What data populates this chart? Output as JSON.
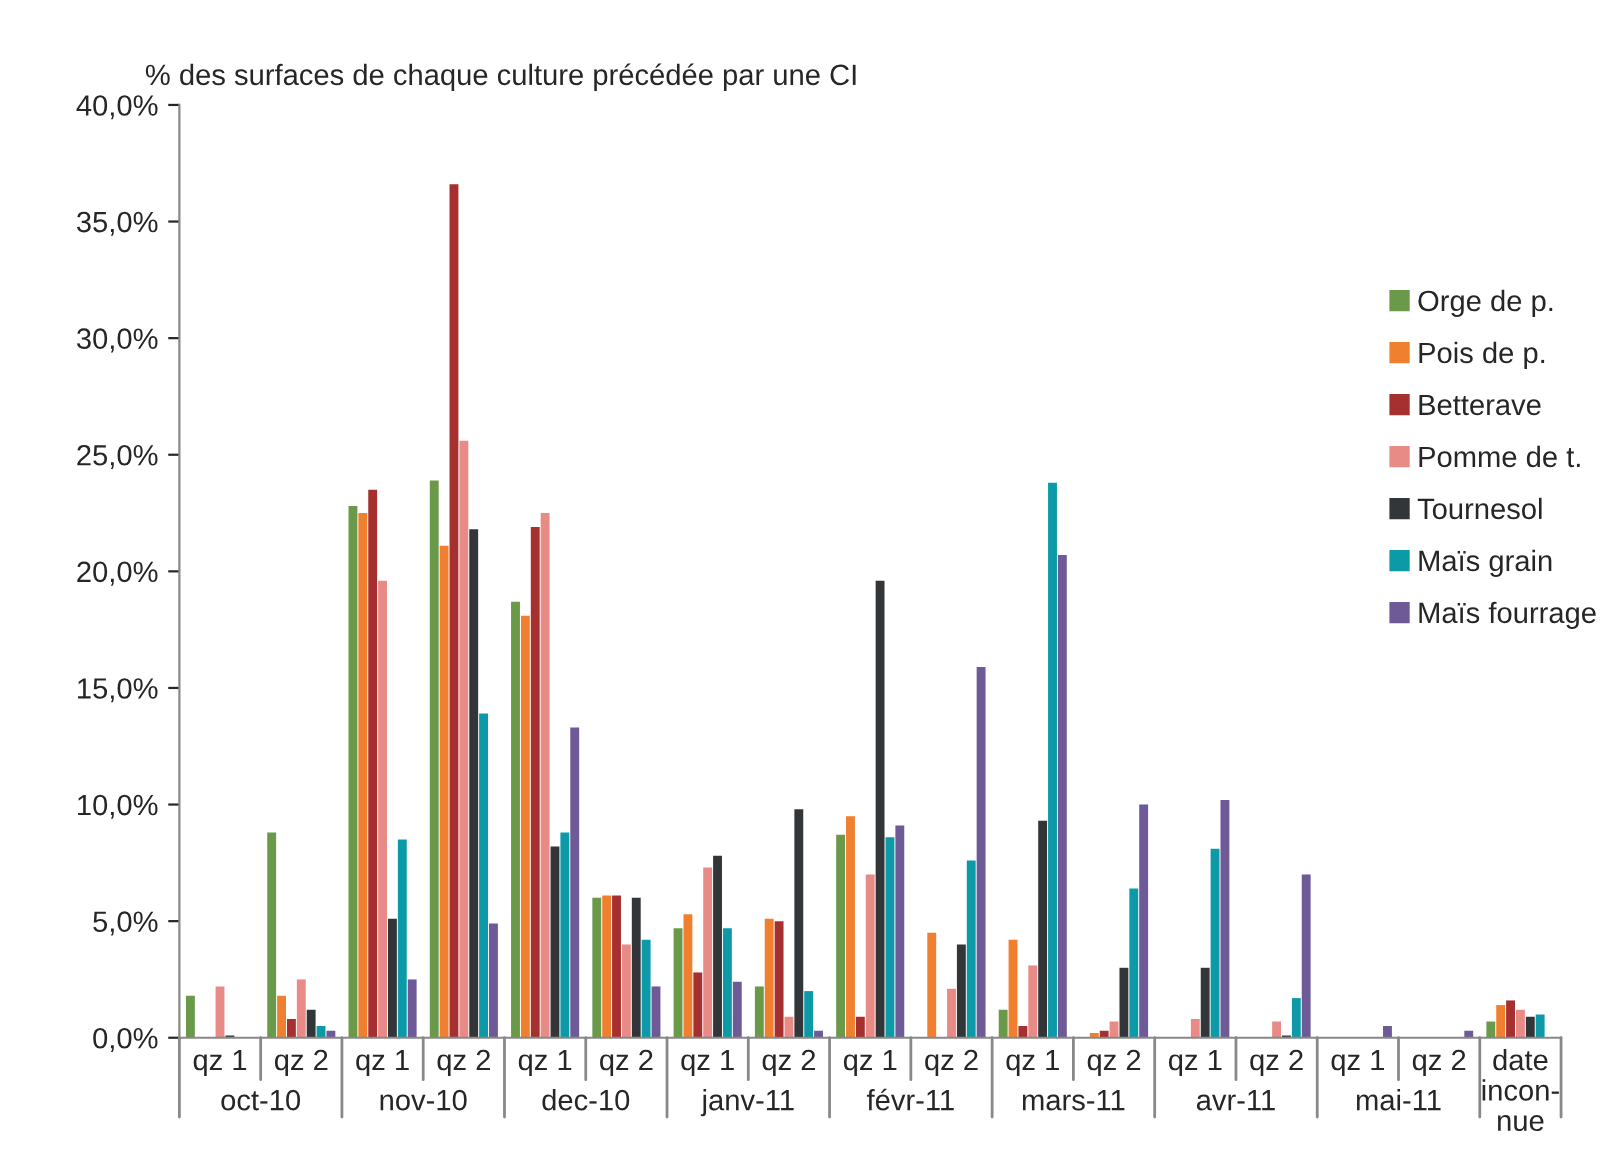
{
  "chart_data": {
    "type": "bar",
    "ylabel": "% des surfaces de chaque culture précédée par une CI",
    "categories": [
      "qz 1",
      "qz 2",
      "qz 1",
      "qz 2",
      "qz 1",
      "qz 2",
      "qz 1",
      "qz 2",
      "qz 1",
      "qz 2",
      "qz 1",
      "qz 2",
      "qz 1",
      "qz 2",
      "qz 1",
      "qz 2",
      "date\nincon-\nnue"
    ],
    "annotations": [
      "oct-10",
      "nov-10",
      "dec-10",
      "janv-11",
      "févr-11",
      "mars-11",
      "avr-11",
      "mai-11"
    ],
    "series": [
      {
        "name": "Orge de p.",
        "color": "#6a994a",
        "values": [
          1.8,
          8.8,
          22.8,
          23.9,
          18.7,
          6.0,
          4.7,
          2.2,
          8.7,
          null,
          1.2,
          null,
          null,
          null,
          null,
          null,
          0.7
        ]
      },
      {
        "name": "Pois de p.",
        "color": "#f07f30",
        "values": [
          null,
          1.8,
          22.5,
          21.1,
          18.1,
          6.1,
          5.3,
          5.1,
          9.5,
          4.5,
          4.2,
          0.2,
          null,
          null,
          null,
          null,
          1.4
        ]
      },
      {
        "name": "Betterave",
        "color": "#a5302f",
        "values": [
          null,
          0.8,
          23.5,
          36.6,
          21.9,
          6.1,
          2.8,
          5.0,
          0.9,
          null,
          0.5,
          0.3,
          null,
          null,
          null,
          null,
          1.6
        ]
      },
      {
        "name": "Pomme de t.",
        "color": "#e88a86",
        "values": [
          2.2,
          2.5,
          19.6,
          25.6,
          22.5,
          4.0,
          7.3,
          0.9,
          7.0,
          2.1,
          3.1,
          0.7,
          0.8,
          0.7,
          null,
          null,
          1.2
        ]
      },
      {
        "name": "Tournesol",
        "color": "#333639",
        "values": [
          0.1,
          1.2,
          5.1,
          21.8,
          8.2,
          6.0,
          7.8,
          9.8,
          19.6,
          4.0,
          9.3,
          3.0,
          3.0,
          0.1,
          null,
          null,
          0.9
        ]
      },
      {
        "name": "Maïs grain",
        "color": "#0d9aa8",
        "values": [
          null,
          0.5,
          8.5,
          13.9,
          8.8,
          4.2,
          4.7,
          2.0,
          8.6,
          7.6,
          23.8,
          6.4,
          8.1,
          1.7,
          null,
          null,
          1.0
        ]
      },
      {
        "name": "Maïs fourrage",
        "color": "#6e5a96",
        "values": [
          null,
          0.3,
          2.5,
          4.9,
          13.3,
          2.2,
          2.4,
          0.3,
          9.1,
          15.9,
          20.7,
          10.0,
          10.2,
          7.0,
          0.5,
          0.3,
          null
        ]
      }
    ],
    "ylim": [
      0,
      40
    ],
    "yticks": [
      {
        "value": 0,
        "label": "0,0%"
      },
      {
        "value": 5,
        "label": "5,0%"
      },
      {
        "value": 10,
        "label": "10,0%"
      },
      {
        "value": 15,
        "label": "15,0%"
      },
      {
        "value": 20,
        "label": "20,0%"
      },
      {
        "value": 25,
        "label": "25,0%"
      },
      {
        "value": 30,
        "label": "30,0%"
      },
      {
        "value": 35,
        "label": "35,0%"
      },
      {
        "value": 40,
        "label": "40,0%"
      }
    ],
    "grid": false,
    "legend": "right"
  }
}
